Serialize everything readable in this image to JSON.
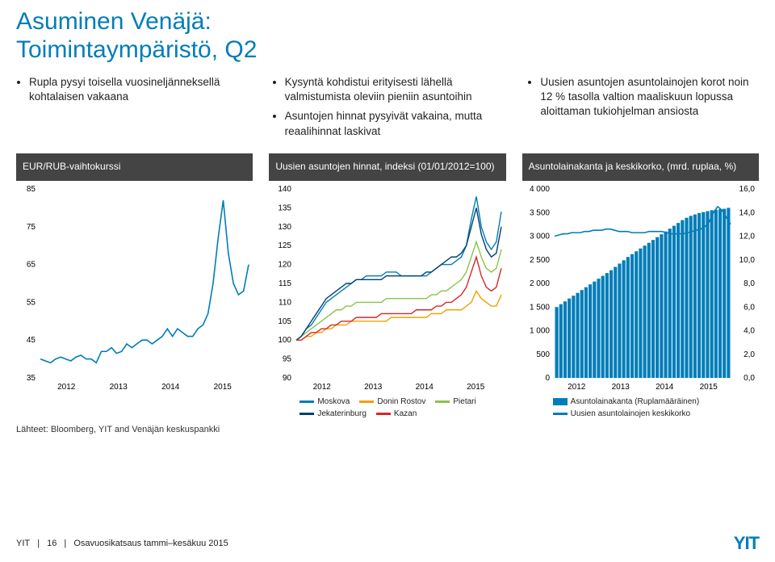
{
  "title_line1": "Asuminen Venäjä:",
  "title_line2": "Toimintaympäristö, Q2",
  "bullets": {
    "col1": [
      "Rupla pysyi toisella vuosineljänneksellä kohtalaisen vakaana"
    ],
    "col2": [
      "Kysyntä kohdistui erityisesti lähellä valmistumista oleviin pieniin asuntoihin",
      "Asuntojen hinnat pysyivät vakaina, mutta reaalihinnat laskivat"
    ],
    "col3": [
      "Uusien asuntojen asuntolainojen korot noin 12 % tasolla valtion maaliskuun lopussa aloittaman tukiohjelman ansiosta"
    ]
  },
  "chart1": {
    "title": "EUR/RUB-vaihtokurssi",
    "type": "line",
    "ylim": [
      35,
      85
    ],
    "ytick_step": 10,
    "xticks": [
      "2012",
      "2013",
      "2014",
      "2015"
    ],
    "line_color": "#007db8",
    "background": "#ffffff",
    "series": [
      40,
      39.5,
      39,
      40,
      40.5,
      40,
      39.5,
      40.5,
      41,
      40,
      40,
      39,
      42,
      42,
      43,
      41.5,
      42,
      44,
      43,
      44,
      45,
      45,
      44,
      45,
      46,
      48,
      46,
      48,
      47,
      46,
      46,
      48,
      49,
      52,
      60,
      72,
      82,
      68,
      60,
      57,
      58,
      65
    ]
  },
  "chart2": {
    "title": "Uusien asuntojen hinnat, indeksi (01/01/2012=100)",
    "type": "line",
    "ylim": [
      90,
      140
    ],
    "ytick_step": 5,
    "xticks": [
      "2012",
      "2013",
      "2014",
      "2015"
    ],
    "background": "#ffffff",
    "series": {
      "Moskova": {
        "color": "#007db8",
        "data": [
          100,
          101,
          103,
          104,
          106,
          108,
          110,
          111,
          112,
          113,
          114,
          115,
          116,
          116,
          117,
          117,
          117,
          117,
          118,
          118,
          118,
          117,
          117,
          117,
          117,
          117,
          117,
          118,
          119,
          120,
          120,
          120,
          121,
          122,
          125,
          132,
          138,
          130,
          126,
          124,
          126,
          134
        ]
      },
      "Donin Rostov": {
        "color": "#f0a000",
        "data": [
          100,
          100,
          101,
          101,
          102,
          102,
          103,
          103,
          104,
          104,
          104,
          105,
          105,
          105,
          105,
          105,
          105,
          105,
          105,
          106,
          106,
          106,
          106,
          106,
          106,
          106,
          106,
          107,
          107,
          107,
          108,
          108,
          108,
          108,
          109,
          110,
          113,
          111,
          110,
          109,
          109,
          112
        ]
      },
      "Pietari": {
        "color": "#8bc34a",
        "data": [
          100,
          101,
          102,
          103,
          104,
          105,
          106,
          107,
          108,
          108,
          109,
          109,
          110,
          110,
          110,
          110,
          110,
          110,
          111,
          111,
          111,
          111,
          111,
          111,
          111,
          111,
          111,
          112,
          112,
          113,
          113,
          114,
          115,
          116,
          118,
          122,
          126,
          122,
          119,
          118,
          119,
          124
        ]
      },
      "Jekaterinburg": {
        "color": "#004070",
        "data": [
          100,
          101,
          103,
          105,
          107,
          109,
          111,
          112,
          113,
          114,
          115,
          115,
          116,
          116,
          116,
          116,
          116,
          116,
          117,
          117,
          117,
          117,
          117,
          117,
          117,
          117,
          118,
          118,
          119,
          120,
          121,
          122,
          122,
          123,
          125,
          130,
          135,
          128,
          124,
          122,
          123,
          130
        ]
      },
      "Kazan": {
        "color": "#d62728",
        "data": [
          100,
          100,
          101,
          102,
          102,
          103,
          103,
          104,
          104,
          105,
          105,
          105,
          106,
          106,
          106,
          106,
          106,
          107,
          107,
          107,
          107,
          107,
          107,
          107,
          108,
          108,
          108,
          108,
          109,
          109,
          110,
          110,
          111,
          112,
          114,
          118,
          122,
          117,
          114,
          113,
          114,
          119
        ]
      }
    },
    "legend": [
      "Moskova",
      "Donin Rostov",
      "Pietari",
      "Jekaterinburg",
      "Kazan"
    ]
  },
  "chart3": {
    "title": "Asuntolainakanta ja keskikorko, (mrd. ruplaa, %)",
    "type": "bar+line",
    "ylim_left": [
      0,
      4000
    ],
    "ytick_left": 500,
    "ylim_right": [
      0.0,
      16.0
    ],
    "ytick_right": 2.0,
    "xticks": [
      "2012",
      "2013",
      "2014",
      "2015"
    ],
    "bar_color": "#007db8",
    "line_color": "#007db8",
    "background": "#ffffff",
    "bars": [
      1500,
      1560,
      1620,
      1680,
      1740,
      1800,
      1860,
      1920,
      1980,
      2040,
      2100,
      2160,
      2220,
      2280,
      2350,
      2420,
      2490,
      2560,
      2620,
      2680,
      2740,
      2800,
      2860,
      2920,
      2980,
      3040,
      3100,
      3160,
      3220,
      3280,
      3340,
      3390,
      3430,
      3460,
      3490,
      3510,
      3530,
      3550,
      3560,
      3570,
      3580,
      3600
    ],
    "line": [
      12.0,
      12.1,
      12.2,
      12.2,
      12.3,
      12.3,
      12.3,
      12.4,
      12.4,
      12.5,
      12.5,
      12.5,
      12.6,
      12.6,
      12.5,
      12.4,
      12.4,
      12.4,
      12.3,
      12.3,
      12.3,
      12.3,
      12.4,
      12.4,
      12.4,
      12.4,
      12.3,
      12.2,
      12.2,
      12.2,
      12.2,
      12.3,
      12.4,
      12.5,
      12.6,
      12.8,
      13.2,
      14.0,
      14.5,
      14.2,
      13.6,
      13.0
    ],
    "legend": [
      {
        "label": "Asuntolainakanta (Ruplamääräinen)",
        "color": "#007db8",
        "type": "bar"
      },
      {
        "label": "Uusien asuntolainojen keskikorko",
        "color": "#007db8",
        "type": "line"
      }
    ]
  },
  "source": "Lähteet: Bloomberg, YIT and Venäjän keskuspankki",
  "footer": {
    "brand": "YIT",
    "page": "16",
    "doc": "Osavuosikatsaus tammi–kesäkuu 2015"
  },
  "logo": "YIT"
}
